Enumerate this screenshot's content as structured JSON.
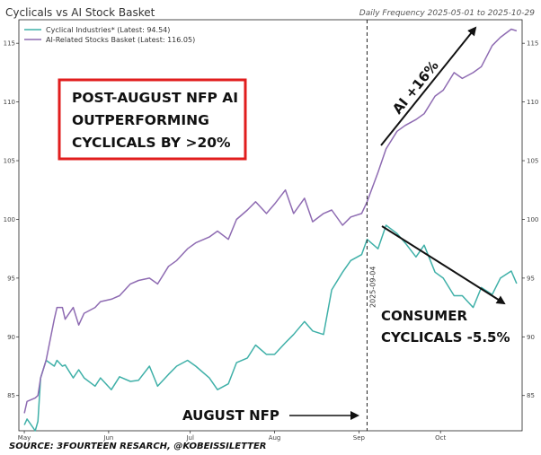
{
  "chart_data": {
    "type": "line",
    "title": "Cyclicals vs AI Stock Basket",
    "subtitle": "Daily Frequency 2025-05-01 to 2025-10-29",
    "x_ticks": [
      "May",
      "Jun",
      "Jul",
      "Aug",
      "Sep",
      "Oct"
    ],
    "y_ticks": [
      85,
      90,
      95,
      100,
      105,
      110,
      115
    ],
    "ylim": [
      82,
      117
    ],
    "grid": false,
    "legend_position": "top-left",
    "series": [
      {
        "name": "Cyclical Industries* (Latest: 94.54)",
        "color": "#3fb0a8",
        "x": [
          "2025-05-01",
          "2025-05-02",
          "2025-05-05",
          "2025-05-06",
          "2025-05-07",
          "2025-05-09",
          "2025-05-12",
          "2025-05-13",
          "2025-05-15",
          "2025-05-16",
          "2025-05-19",
          "2025-05-21",
          "2025-05-23",
          "2025-05-27",
          "2025-05-29",
          "2025-06-02",
          "2025-06-05",
          "2025-06-09",
          "2025-06-12",
          "2025-06-16",
          "2025-06-19",
          "2025-06-23",
          "2025-06-26",
          "2025-06-30",
          "2025-07-03",
          "2025-07-08",
          "2025-07-11",
          "2025-07-15",
          "2025-07-18",
          "2025-07-22",
          "2025-07-25",
          "2025-07-29",
          "2025-08-01",
          "2025-08-05",
          "2025-08-08",
          "2025-08-12",
          "2025-08-15",
          "2025-08-19",
          "2025-08-22",
          "2025-08-26",
          "2025-08-29",
          "2025-09-02",
          "2025-09-04",
          "2025-09-08",
          "2025-09-11",
          "2025-09-15",
          "2025-09-18",
          "2025-09-22",
          "2025-09-25",
          "2025-09-29",
          "2025-10-02",
          "2025-10-06",
          "2025-10-09",
          "2025-10-13",
          "2025-10-16",
          "2025-10-20",
          "2025-10-23",
          "2025-10-27",
          "2025-10-29"
        ],
        "values": [
          82.5,
          83,
          82,
          82.8,
          86.5,
          88,
          87.5,
          88,
          87.5,
          87.6,
          86.5,
          87.2,
          86.5,
          85.8,
          86.5,
          85.5,
          86.6,
          86.2,
          86.3,
          87.5,
          85.8,
          86.8,
          87.5,
          88,
          87.5,
          86.5,
          85.5,
          86,
          87.8,
          88.2,
          89.3,
          88.5,
          88.5,
          89.5,
          90.2,
          91.3,
          90.5,
          90.2,
          94,
          95.5,
          96.5,
          97,
          98.3,
          97.5,
          99.5,
          98.8,
          98,
          96.8,
          97.8,
          95.5,
          95,
          93.5,
          93.5,
          92.5,
          94.2,
          93.6,
          95,
          95.6,
          94.54
        ]
      },
      {
        "name": "AI-Related Stocks Basket (Latest: 116.05)",
        "color": "#8e6bb2",
        "x": [
          "2025-05-01",
          "2025-05-02",
          "2025-05-05",
          "2025-05-06",
          "2025-05-07",
          "2025-05-09",
          "2025-05-12",
          "2025-05-13",
          "2025-05-15",
          "2025-05-16",
          "2025-05-19",
          "2025-05-21",
          "2025-05-23",
          "2025-05-27",
          "2025-05-29",
          "2025-06-02",
          "2025-06-05",
          "2025-06-09",
          "2025-06-12",
          "2025-06-16",
          "2025-06-19",
          "2025-06-23",
          "2025-06-26",
          "2025-06-30",
          "2025-07-03",
          "2025-07-08",
          "2025-07-11",
          "2025-07-15",
          "2025-07-18",
          "2025-07-22",
          "2025-07-25",
          "2025-07-29",
          "2025-08-01",
          "2025-08-05",
          "2025-08-08",
          "2025-08-12",
          "2025-08-15",
          "2025-08-19",
          "2025-08-22",
          "2025-08-26",
          "2025-08-29",
          "2025-09-02",
          "2025-09-04",
          "2025-09-08",
          "2025-09-11",
          "2025-09-15",
          "2025-09-18",
          "2025-09-22",
          "2025-09-25",
          "2025-09-29",
          "2025-10-02",
          "2025-10-06",
          "2025-10-09",
          "2025-10-13",
          "2025-10-16",
          "2025-10-20",
          "2025-10-23",
          "2025-10-27",
          "2025-10-29"
        ],
        "values": [
          83.5,
          84.5,
          84.8,
          85,
          86.5,
          88,
          91.5,
          92.5,
          92.5,
          91.5,
          92.5,
          91,
          92,
          92.5,
          93,
          93.2,
          93.5,
          94.5,
          94.8,
          95,
          94.5,
          96,
          96.5,
          97.5,
          98,
          98.5,
          99,
          98.3,
          100,
          100.8,
          101.5,
          100.5,
          101.3,
          102.5,
          100.5,
          101.8,
          99.8,
          100.5,
          100.8,
          99.5,
          100.2,
          100.5,
          101.5,
          104,
          106,
          107.5,
          108,
          108.5,
          109,
          110.5,
          111,
          112.5,
          112,
          112.5,
          113,
          114.8,
          115.5,
          116.2,
          116.05
        ]
      }
    ],
    "vertical_marker": {
      "x": "2025-09-04",
      "label": "2025-09-04"
    },
    "annotations": {
      "red_box_lines": [
        "POST-AUGUST NFP AI",
        "OUTPERFORMING",
        "CYCLICALS BY >20%"
      ],
      "ai_label": "AI +16%",
      "consumer_lines": [
        "CONSUMER",
        "CYCLICALS -5.5%"
      ],
      "nfp_label": "AUGUST NFP"
    },
    "source": "SOURCE: 3FOURTEEN RESARCH, @KOBEISSILETTER"
  }
}
